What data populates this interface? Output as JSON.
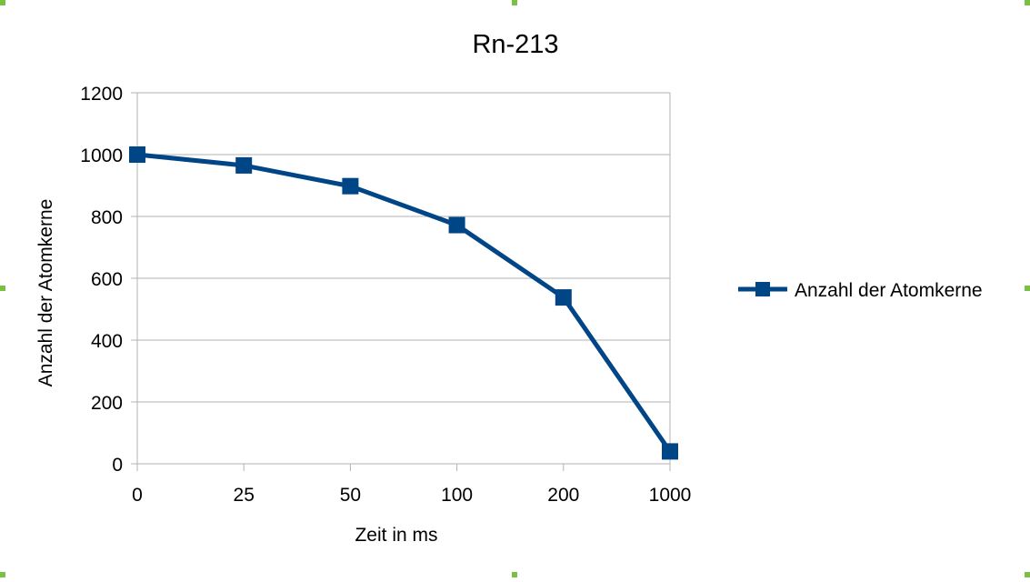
{
  "chart_data": {
    "type": "line",
    "title": "Rn-213",
    "xlabel": "Zeit in ms",
    "ylabel": "Anzahl der Atomkerne",
    "categories": [
      "0",
      "25",
      "50",
      "100",
      "200",
      "1000"
    ],
    "series": [
      {
        "name": "Anzahl der Atomkerne",
        "values": [
          1000,
          965,
          898,
          772,
          538,
          40
        ],
        "color": "#004586"
      }
    ],
    "ylim": [
      0,
      1200
    ],
    "yticks": [
      0,
      200,
      400,
      600,
      800,
      1000,
      1200
    ],
    "grid": true,
    "legend": "right",
    "marker": "square"
  }
}
